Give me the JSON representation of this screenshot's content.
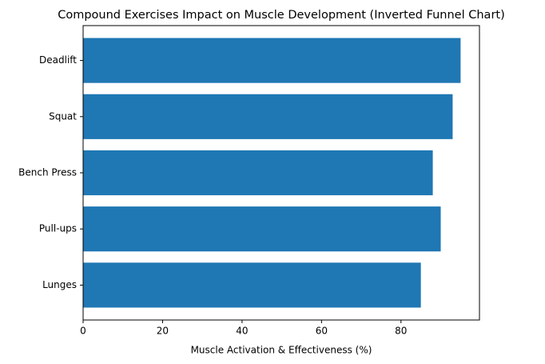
{
  "chart_data": {
    "type": "barh",
    "title": "Compound Exercises Impact on Muscle Development (Inverted Funnel Chart)",
    "x_label": "Muscle Activation & Effectiveness (%)",
    "categories": [
      "Deadlift",
      "Squat",
      "Bench Press",
      "Pull-ups",
      "Lunges"
    ],
    "values": [
      95,
      93,
      88,
      90,
      85
    ],
    "color": "#1f77b4",
    "xlim": [
      0,
      99.75
    ],
    "xticks": [
      0,
      20,
      40,
      60,
      80
    ],
    "grid": false
  }
}
